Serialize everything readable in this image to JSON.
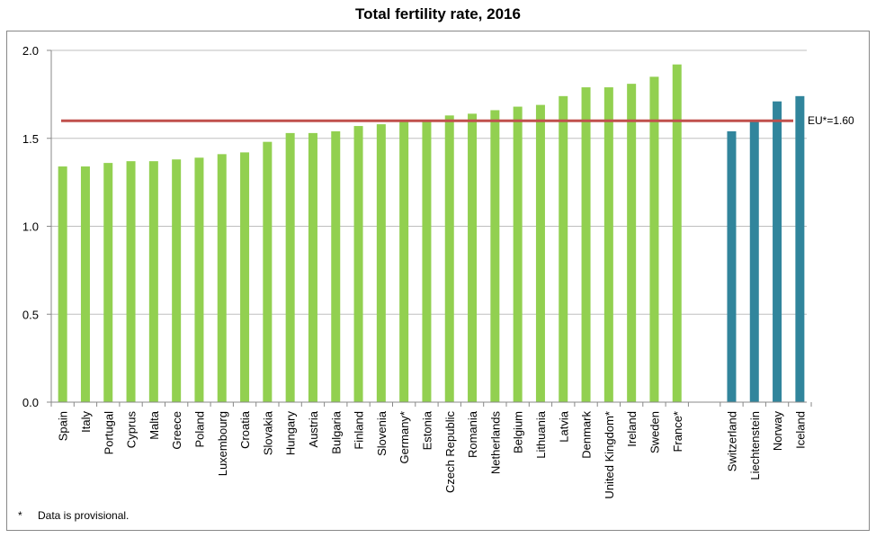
{
  "chart_data": {
    "type": "bar",
    "title": "Total fertility rate, 2016",
    "xlabel": "",
    "ylabel": "",
    "ylim": [
      0,
      2.0
    ],
    "yticks": [
      "0.0",
      "0.5",
      "1.0",
      "1.5",
      "2.0"
    ],
    "grid": true,
    "colors": {
      "eu": "#92d050",
      "non_eu": "#31859c",
      "reference_line": "#c0504d",
      "grid": "#bfbfbf"
    },
    "groups": [
      {
        "color": "#92d050",
        "categories": [
          "Spain",
          "Italy",
          "Portugal",
          "Cyprus",
          "Malta",
          "Greece",
          "Poland",
          "Luxembourg",
          "Croatia",
          "Slovakia",
          "Hungary",
          "Austria",
          "Bulgaria",
          "Finland",
          "Slovenia",
          "Germany*",
          "Estonia",
          "Czech Republic",
          "Romania",
          "Netherlands",
          "Belgium",
          "Lithuania",
          "Latvia",
          "Denmark",
          "United Kingdom*",
          "Ireland",
          "Sweden",
          "France*"
        ],
        "values": [
          1.34,
          1.34,
          1.36,
          1.37,
          1.37,
          1.38,
          1.39,
          1.41,
          1.42,
          1.48,
          1.53,
          1.53,
          1.54,
          1.57,
          1.58,
          1.6,
          1.6,
          1.63,
          1.64,
          1.66,
          1.68,
          1.69,
          1.74,
          1.79,
          1.79,
          1.81,
          1.85,
          1.92
        ]
      },
      {
        "color": "#31859c",
        "categories": [
          "Switzerland",
          "Liechtenstein",
          "Norway",
          "Iceland"
        ],
        "values": [
          1.54,
          1.6,
          1.71,
          1.74
        ]
      }
    ],
    "reference_line": {
      "value": 1.6,
      "label": "EU*=1.60"
    }
  },
  "footnote": {
    "marker": "*",
    "text": "Data is provisional."
  }
}
